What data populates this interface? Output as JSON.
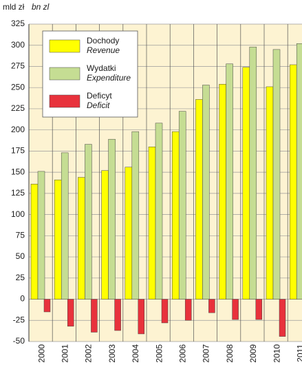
{
  "chart_data": {
    "type": "bar",
    "y_label": "mld zł",
    "y_label_en": "bn zl",
    "categories": [
      "2000",
      "2001",
      "2002",
      "2003",
      "2004",
      "2005",
      "2006",
      "2007",
      "2008",
      "2009",
      "2010",
      "2011"
    ],
    "series": [
      {
        "name": "Dochody",
        "name_en": "Revenue",
        "color": "#ffff00",
        "values": [
          136,
          141,
          144,
          152,
          156,
          180,
          198,
          236,
          254,
          274,
          251,
          277
        ]
      },
      {
        "name": "Wydatki",
        "name_en": "Expenditure",
        "color": "#c5dd93",
        "values": [
          151,
          173,
          183,
          189,
          198,
          208,
          222,
          253,
          278,
          298,
          295,
          302
        ]
      },
      {
        "name": "Deficyt",
        "name_en": "Deficit",
        "color": "#e8323c",
        "values": [
          -15,
          -32,
          -39,
          -37,
          -41,
          -28,
          -25,
          -16,
          -24,
          -24,
          -44,
          -25
        ]
      }
    ],
    "ylim": [
      -50,
      325
    ],
    "yticks": [
      -50,
      -25,
      0,
      25,
      50,
      75,
      100,
      125,
      150,
      175,
      200,
      225,
      250,
      275,
      300,
      325
    ],
    "grid": true
  }
}
